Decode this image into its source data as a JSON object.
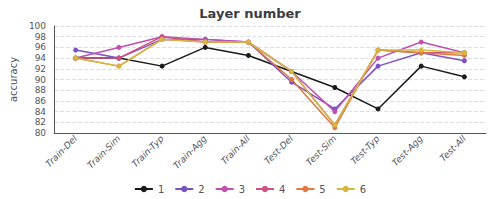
{
  "chart_data": {
    "type": "line",
    "title": "Layer number",
    "ylabel": "accuracy",
    "categories": [
      "Train-Del",
      "Train-Sim",
      "Train-Typ",
      "Train-Agg",
      "Train-All",
      "Test-Del",
      "Test-Sim",
      "Test-Typ",
      "Test-Agg",
      "Test-All"
    ],
    "series": [
      {
        "name": "1",
        "color": "#1a1a1a",
        "marker": "o",
        "values": [
          94.0,
          94.0,
          92.5,
          96.0,
          94.5,
          91.5,
          88.5,
          84.5,
          92.5,
          90.5
        ]
      },
      {
        "name": "2",
        "color": "#7b52c1",
        "marker": "o",
        "values": [
          95.5,
          94.0,
          97.5,
          97.5,
          97.0,
          89.5,
          84.5,
          92.5,
          95.0,
          93.5
        ]
      },
      {
        "name": "3",
        "color": "#c050b0",
        "marker": "o",
        "values": [
          94.0,
          96.0,
          98.0,
          97.5,
          97.0,
          91.5,
          84.0,
          94.0,
          97.0,
          95.0
        ]
      },
      {
        "name": "4",
        "color": "#d05080",
        "marker": "o",
        "values": [
          94.0,
          94.0,
          98.0,
          97.0,
          97.0,
          91.5,
          81.5,
          95.5,
          95.0,
          95.0
        ]
      },
      {
        "name": "5",
        "color": "#e07840",
        "marker": "o",
        "values": [
          94.0,
          92.5,
          97.5,
          97.0,
          97.0,
          90.0,
          81.0,
          95.5,
          95.0,
          94.5
        ]
      },
      {
        "name": "6",
        "color": "#d4b840",
        "marker": "o",
        "values": [
          94.0,
          92.5,
          97.5,
          97.0,
          97.0,
          91.5,
          81.5,
          95.5,
          95.5,
          95.0
        ]
      }
    ],
    "ylim": [
      80,
      100
    ],
    "yticks": [
      80,
      82,
      84,
      86,
      88,
      90,
      92,
      94,
      96,
      98,
      100
    ],
    "grid": true,
    "legend": "bottom"
  }
}
